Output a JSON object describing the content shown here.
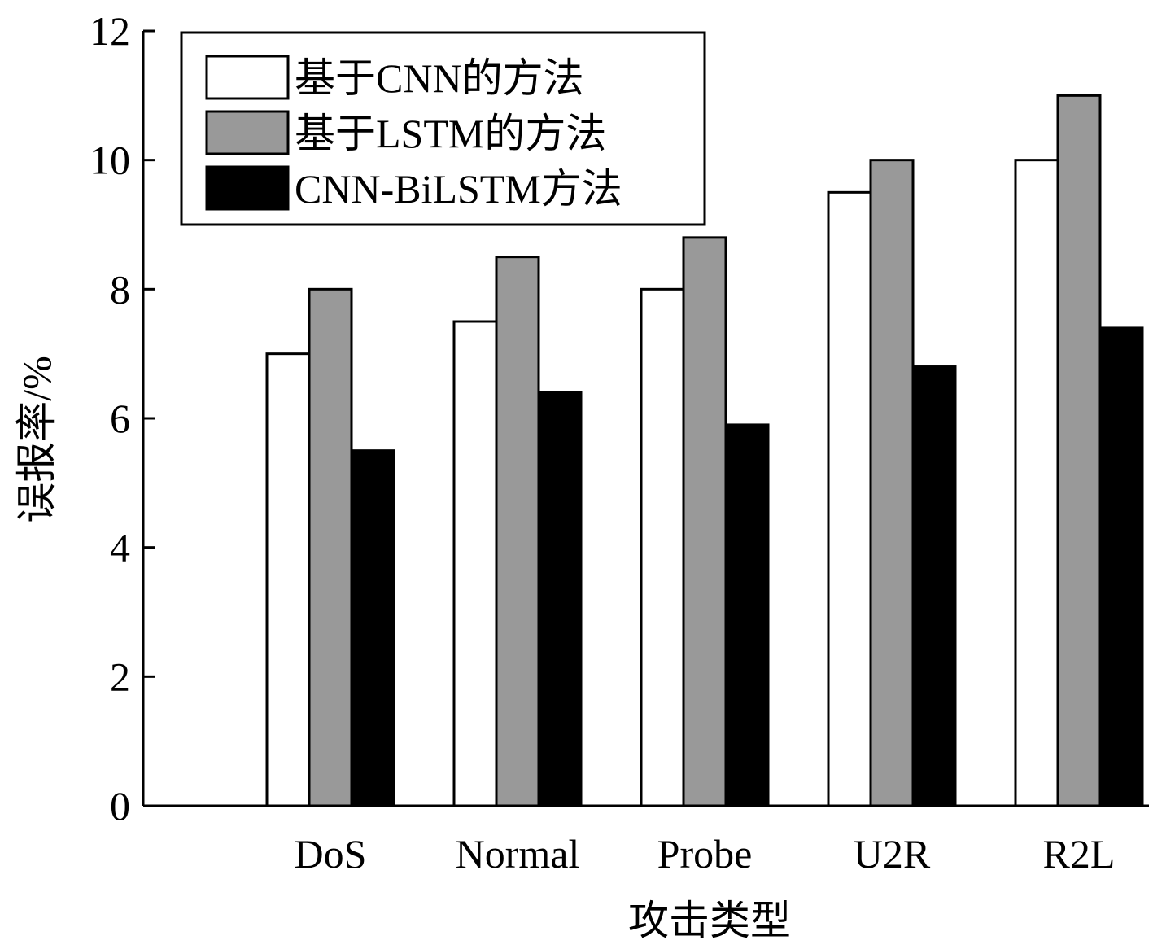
{
  "chart_data": {
    "type": "bar",
    "categories": [
      "DoS",
      "Normal",
      "Probe",
      "U2R",
      "R2L"
    ],
    "series": [
      {
        "name": "基于CNN的方法",
        "values": [
          7.0,
          7.5,
          8.0,
          9.5,
          10.0
        ],
        "color": "#ffffff"
      },
      {
        "name": "基于LSTM的方法",
        "values": [
          8.0,
          8.5,
          8.8,
          10.0,
          11.0
        ],
        "color": "#999999"
      },
      {
        "name": "CNN-BiLSTM方法",
        "values": [
          5.5,
          6.4,
          5.9,
          6.8,
          7.4
        ],
        "color": "#000000"
      }
    ],
    "xlabel": "攻击类型",
    "ylabel": "误报率/%",
    "ylim": [
      0,
      12
    ],
    "yticks": [
      "0",
      "2",
      "4",
      "6",
      "8",
      "10",
      "12"
    ],
    "grid": false,
    "legend_position": "top-left"
  }
}
